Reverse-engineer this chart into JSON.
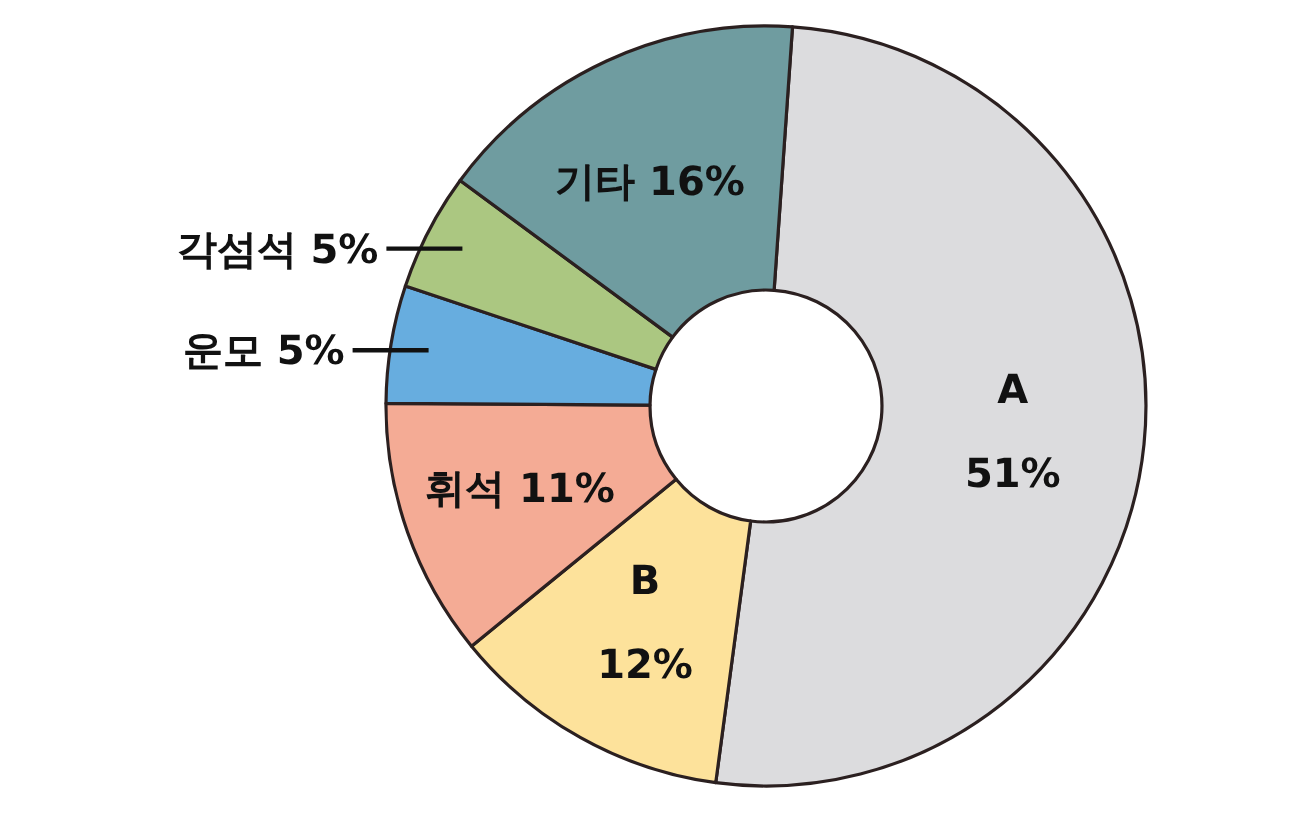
{
  "chart_data": {
    "type": "donut",
    "categories": [
      "A",
      "B",
      "휘석",
      "운모",
      "각섬석",
      "기타"
    ],
    "values": [
      51,
      12,
      11,
      5,
      5,
      16
    ],
    "colors": [
      "#dcdcde",
      "#fde29b",
      "#f4ab95",
      "#67addf",
      "#abc781",
      "#6f9ca0"
    ],
    "value_labels": [
      "51%",
      "12%",
      "11%",
      "5%",
      "5%",
      "16%"
    ]
  }
}
